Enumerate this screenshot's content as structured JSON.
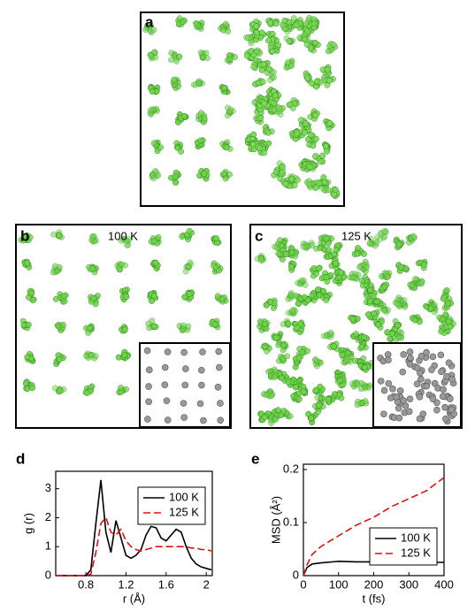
{
  "panels": [
    {
      "label": "a"
    },
    {
      "label": "b",
      "temperature": "100 K"
    },
    {
      "label": "c",
      "temperature": "125 K"
    }
  ],
  "chart_data": [
    {
      "type": "line",
      "panel_label": "d",
      "x_label": "r (Å)",
      "y_label": "g (r)",
      "x": [
        0.5,
        0.8,
        0.85,
        0.9,
        0.95,
        1.0,
        1.05,
        1.1,
        1.15,
        1.2,
        1.25,
        1.3,
        1.35,
        1.4,
        1.45,
        1.5,
        1.55,
        1.6,
        1.65,
        1.7,
        1.75,
        1.8,
        1.85,
        1.9,
        1.95,
        2.0,
        2.05
      ],
      "series": [
        {
          "name": "100 K",
          "color": "#000000",
          "linestyle": "solid",
          "values": [
            0,
            0,
            0.2,
            1.8,
            3.3,
            1.5,
            0.8,
            1.9,
            1.3,
            0.7,
            0.6,
            0.7,
            0.9,
            1.4,
            1.7,
            1.65,
            1.3,
            1.2,
            1.4,
            1.6,
            1.5,
            1.0,
            0.6,
            0.4,
            0.3,
            0.25,
            0.2
          ]
        },
        {
          "name": "125 K",
          "color": "#dd1111",
          "linestyle": "dashed",
          "values": [
            0,
            0,
            0.05,
            0.8,
            1.8,
            2.0,
            1.5,
            1.4,
            1.6,
            1.2,
            1.0,
            0.9,
            0.85,
            0.9,
            0.95,
            1.0,
            1.0,
            1.0,
            1.0,
            1.0,
            1.0,
            1.0,
            0.95,
            0.95,
            0.9,
            0.9,
            0.85
          ]
        }
      ],
      "xlim": [
        0.5,
        2.06
      ],
      "xticks": [
        0.8,
        1.2,
        1.6,
        2
      ],
      "ylim": [
        0,
        3.6
      ],
      "yticks": [
        0,
        1,
        2,
        3
      ],
      "legend": "upper right"
    },
    {
      "type": "line",
      "panel_label": "e",
      "x_label": "t (fs)",
      "y_label": "MSD (Å²)",
      "x": [
        0,
        10,
        25,
        50,
        100,
        150,
        200,
        250,
        300,
        350,
        400
      ],
      "series": [
        {
          "name": "100 K",
          "color": "#000000",
          "linestyle": "solid",
          "values": [
            0,
            0.015,
            0.022,
            0.024,
            0.027,
            0.026,
            0.026,
            0.025,
            0.025,
            0.025,
            0.025
          ]
        },
        {
          "name": "125 K",
          "color": "#dd1111",
          "linestyle": "dashed",
          "values": [
            0,
            0.02,
            0.04,
            0.055,
            0.075,
            0.095,
            0.11,
            0.13,
            0.145,
            0.16,
            0.185
          ]
        }
      ],
      "xlim": [
        0,
        400
      ],
      "xticks": [
        0,
        100,
        200,
        300,
        400
      ],
      "ylim": [
        0,
        0.21
      ],
      "yticks": [
        0,
        0.1,
        0.2
      ],
      "legend": "lower right"
    }
  ]
}
